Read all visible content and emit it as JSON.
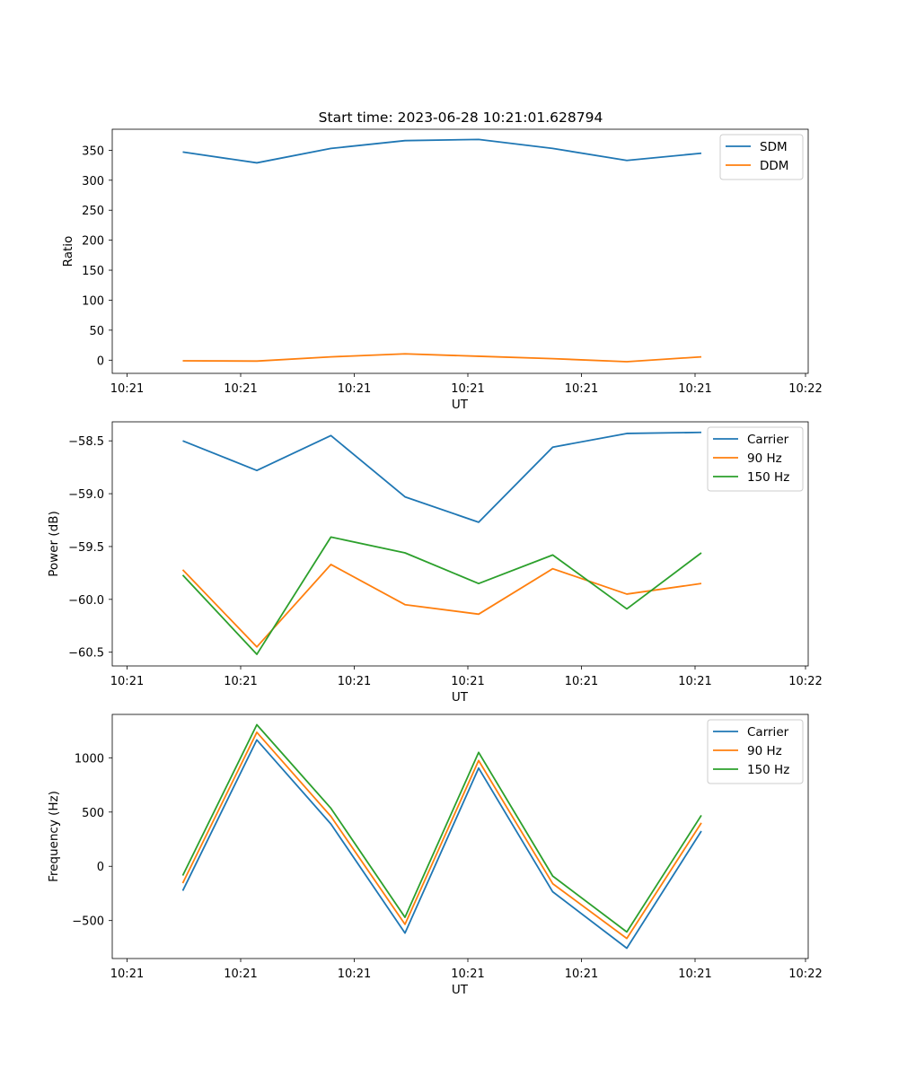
{
  "figure_title": "Start time: 2023-06-28 10:21:01.628794",
  "chart_data": [
    {
      "type": "line",
      "title": "Start time: 2023-06-28 10:21:01.628794",
      "xlabel": "UT",
      "ylabel": "Ratio",
      "x_tick_labels": [
        "10:21",
        "10:21",
        "10:21",
        "10:21",
        "10:21",
        "10:21",
        "10:22"
      ],
      "y_ticks": [
        0,
        50,
        100,
        150,
        200,
        250,
        300,
        350
      ],
      "ylim": [
        -22,
        385
      ],
      "legend_position": "top-right",
      "grid": false,
      "series": [
        {
          "name": "SDM",
          "color": "#1f77b4",
          "values": [
            347,
            329,
            353,
            366,
            368,
            353,
            333,
            345
          ]
        },
        {
          "name": "DDM",
          "color": "#ff7f0e",
          "values": [
            -1,
            -1.5,
            5.5,
            10.5,
            6.5,
            2.5,
            -2.5,
            5.5
          ]
        }
      ]
    },
    {
      "type": "line",
      "title": "",
      "xlabel": "UT",
      "ylabel": "Power (dB)",
      "x_tick_labels": [
        "10:21",
        "10:21",
        "10:21",
        "10:21",
        "10:21",
        "10:21",
        "10:22"
      ],
      "y_ticks": [
        -58.5,
        -59.0,
        -59.5,
        -60.0,
        -60.5
      ],
      "y_tick_labels": [
        "−58.5",
        "−59.0",
        "−59.5",
        "−60.0",
        "−60.5"
      ],
      "ylim": [
        -60.63,
        -58.32
      ],
      "legend_position": "top-right",
      "grid": false,
      "series": [
        {
          "name": "Carrier",
          "color": "#1f77b4",
          "values": [
            -58.5,
            -58.78,
            -58.45,
            -59.03,
            -59.27,
            -58.56,
            -58.43,
            -58.42
          ]
        },
        {
          "name": "90 Hz",
          "color": "#ff7f0e",
          "values": [
            -59.72,
            -60.45,
            -59.67,
            -60.05,
            -60.14,
            -59.71,
            -59.95,
            -59.85
          ]
        },
        {
          "name": "150 Hz",
          "color": "#2ca02c",
          "values": [
            -59.77,
            -60.52,
            -59.41,
            -59.56,
            -59.85,
            -59.58,
            -60.09,
            -59.56
          ]
        }
      ]
    },
    {
      "type": "line",
      "title": "",
      "xlabel": "UT",
      "ylabel": "Frequency (Hz)",
      "x_tick_labels": [
        "10:21",
        "10:21",
        "10:21",
        "10:21",
        "10:21",
        "10:21",
        "10:22"
      ],
      "y_ticks": [
        -500,
        0,
        500,
        1000
      ],
      "y_tick_labels": [
        "−500",
        "0",
        "500",
        "1000"
      ],
      "ylim": [
        -850,
        1400
      ],
      "legend_position": "top-right",
      "grid": false,
      "series": [
        {
          "name": "Carrier",
          "color": "#1f77b4",
          "values": [
            -225,
            1165,
            390,
            -615,
            905,
            -235,
            -755,
            325
          ]
        },
        {
          "name": "90 Hz",
          "color": "#ff7f0e",
          "values": [
            -155,
            1235,
            460,
            -535,
            975,
            -160,
            -665,
            400
          ]
        },
        {
          "name": "150 Hz",
          "color": "#2ca02c",
          "values": [
            -85,
            1305,
            535,
            -470,
            1050,
            -90,
            -605,
            470
          ]
        }
      ]
    }
  ]
}
